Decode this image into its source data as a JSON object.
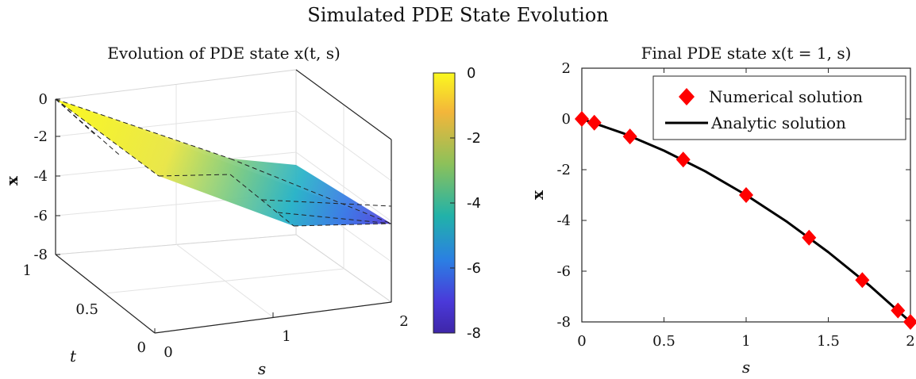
{
  "figure": {
    "title": "Simulated PDE State Evolution"
  },
  "chart_data": [
    {
      "type": "surface",
      "title": "Evolution of PDE state x(t, s)",
      "xlabel": "s",
      "ylabel": "t",
      "zlabel": "x",
      "xlim": [
        0,
        2
      ],
      "ylim": [
        0,
        1
      ],
      "zlim": [
        -8,
        0
      ],
      "xticks": [
        "0",
        "1",
        "2"
      ],
      "yticks": [
        "0",
        "0.5",
        "1"
      ],
      "zticks": [
        "0",
        "-2",
        "-4",
        "-6",
        "-8"
      ],
      "grid": true,
      "surface_points": [
        {
          "s": 0,
          "t": 1,
          "x": 0
        },
        {
          "s": 0.6,
          "t": 0,
          "x": -1.6
        },
        {
          "s": 1,
          "t": 0,
          "x": -3
        },
        {
          "s": 2,
          "t": 0,
          "x": -8
        },
        {
          "s": 2,
          "t": 1,
          "x": -8
        }
      ],
      "colorbar": {
        "ticks": [
          "0",
          "-2",
          "-4",
          "-6",
          "-8"
        ],
        "colormap": [
          "#fbf91f",
          "#f3b63a",
          "#8cc15a",
          "#21b2a9",
          "#2b7fe3",
          "#4a39d9",
          "#3e26a8"
        ]
      }
    },
    {
      "type": "line",
      "title": "Final PDE state x(t = 1, s)",
      "xlabel": "s",
      "ylabel": "x",
      "xlim": [
        0,
        2
      ],
      "ylim": [
        -8,
        2
      ],
      "xticks": [
        "0",
        "0.5",
        "1",
        "1.5",
        "2"
      ],
      "yticks": [
        "2",
        "0",
        "-2",
        "-4",
        "-6",
        "-8"
      ],
      "legend_position": "top-right",
      "series": [
        {
          "name": "Numerical solution",
          "marker": "diamond",
          "color": "#ff0000",
          "x": [
            0,
            0.076,
            0.293,
            0.617,
            1,
            1.383,
            1.707,
            1.924,
            2
          ],
          "y": [
            0,
            -0.15,
            -0.69,
            -1.6,
            -3,
            -4.68,
            -6.35,
            -7.55,
            -8
          ]
        },
        {
          "name": "Analytic solution",
          "marker": "none",
          "color": "#000000",
          "x": [
            0,
            0.25,
            0.5,
            0.75,
            1,
            1.25,
            1.5,
            1.75,
            2
          ],
          "y": [
            0,
            -0.56,
            -1.25,
            -2.06,
            -3,
            -4.06,
            -5.25,
            -6.56,
            -8
          ]
        }
      ]
    }
  ]
}
